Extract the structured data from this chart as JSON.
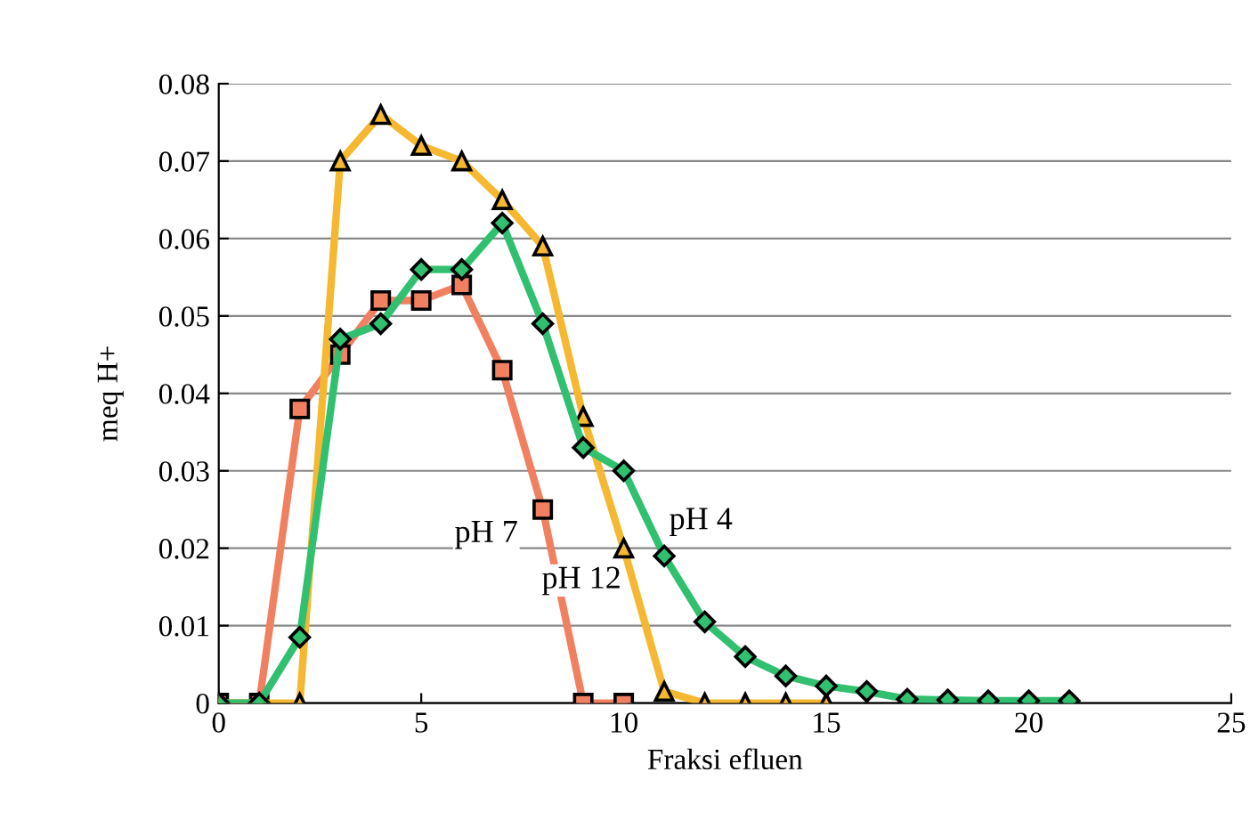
{
  "chart_data": {
    "type": "line",
    "xlabel": "Fraksi efluen",
    "ylabel": "meq H+",
    "xlim": [
      0,
      25
    ],
    "xticks": [
      0,
      5,
      10,
      15,
      20,
      25
    ],
    "ylim": [
      0,
      0.08
    ],
    "yticks": [
      0,
      0.01,
      0.02,
      0.03,
      0.04,
      0.05,
      0.06,
      0.07,
      0.08
    ],
    "grid": "y",
    "line_style": "solid",
    "series": [
      {
        "name": "pH 7",
        "color": "#f08060",
        "marker": "square",
        "x": [
          0,
          1,
          2,
          3,
          4,
          5,
          6,
          7,
          8,
          9,
          10
        ],
        "values": [
          0,
          0,
          0.038,
          0.045,
          0.052,
          0.052,
          0.054,
          0.043,
          0.025,
          0,
          0
        ]
      },
      {
        "name": "pH 12",
        "color": "#f5b830",
        "marker": "triangle",
        "x": [
          0,
          1,
          2,
          3,
          4,
          5,
          6,
          7,
          8,
          9,
          10,
          11,
          12,
          13,
          14,
          15
        ],
        "values": [
          0,
          0,
          0,
          0.07,
          0.076,
          0.072,
          0.07,
          0.065,
          0.059,
          0.037,
          0.02,
          0.0015,
          0,
          0,
          0,
          0
        ]
      },
      {
        "name": "pH 4",
        "color": "#30c070",
        "marker": "diamond",
        "x": [
          0,
          1,
          2,
          3,
          4,
          5,
          6,
          7,
          8,
          9,
          10,
          11,
          12,
          13,
          14,
          15,
          16,
          17,
          18,
          19,
          20,
          21
        ],
        "values": [
          0,
          0,
          0.0085,
          0.047,
          0.049,
          0.056,
          0.056,
          0.062,
          0.049,
          0.033,
          0.03,
          0.019,
          0.0105,
          0.006,
          0.0035,
          0.0022,
          0.0015,
          0.0005,
          0.0004,
          0.0003,
          0.0003,
          0.0003
        ]
      }
    ]
  }
}
